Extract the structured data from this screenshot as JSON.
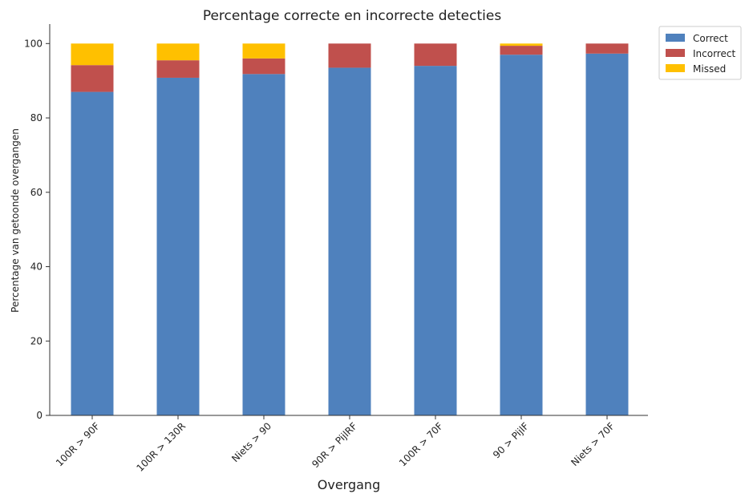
{
  "chart_data": {
    "type": "bar",
    "stacked": true,
    "title": "Percentage correcte en incorrecte detecties",
    "xlabel": "Overgang",
    "ylabel": "Percentage van getoonde overgangen",
    "categories": [
      "100R > 90F",
      "100R > 130R",
      "Niets > 90",
      "90R > PijlRF",
      "100R > 70F",
      "90 > PijlF",
      "Niets > 70F"
    ],
    "ylim": [
      0,
      105
    ],
    "yticks": [
      0,
      20,
      40,
      60,
      80,
      100
    ],
    "series": [
      {
        "name": "Correct",
        "color": "#4f81bd",
        "values": [
          87.0,
          90.8,
          91.8,
          93.5,
          94.0,
          97.0,
          97.3
        ]
      },
      {
        "name": "Incorrect",
        "color": "#c0504d",
        "values": [
          7.2,
          4.7,
          4.2,
          6.5,
          6.0,
          2.4,
          2.7
        ]
      },
      {
        "name": "Missed",
        "color": "#ffc000",
        "values": [
          5.8,
          4.5,
          4.0,
          0.0,
          0.0,
          0.6,
          0.0
        ]
      }
    ],
    "legend_position": "top-right",
    "grid": false
  }
}
